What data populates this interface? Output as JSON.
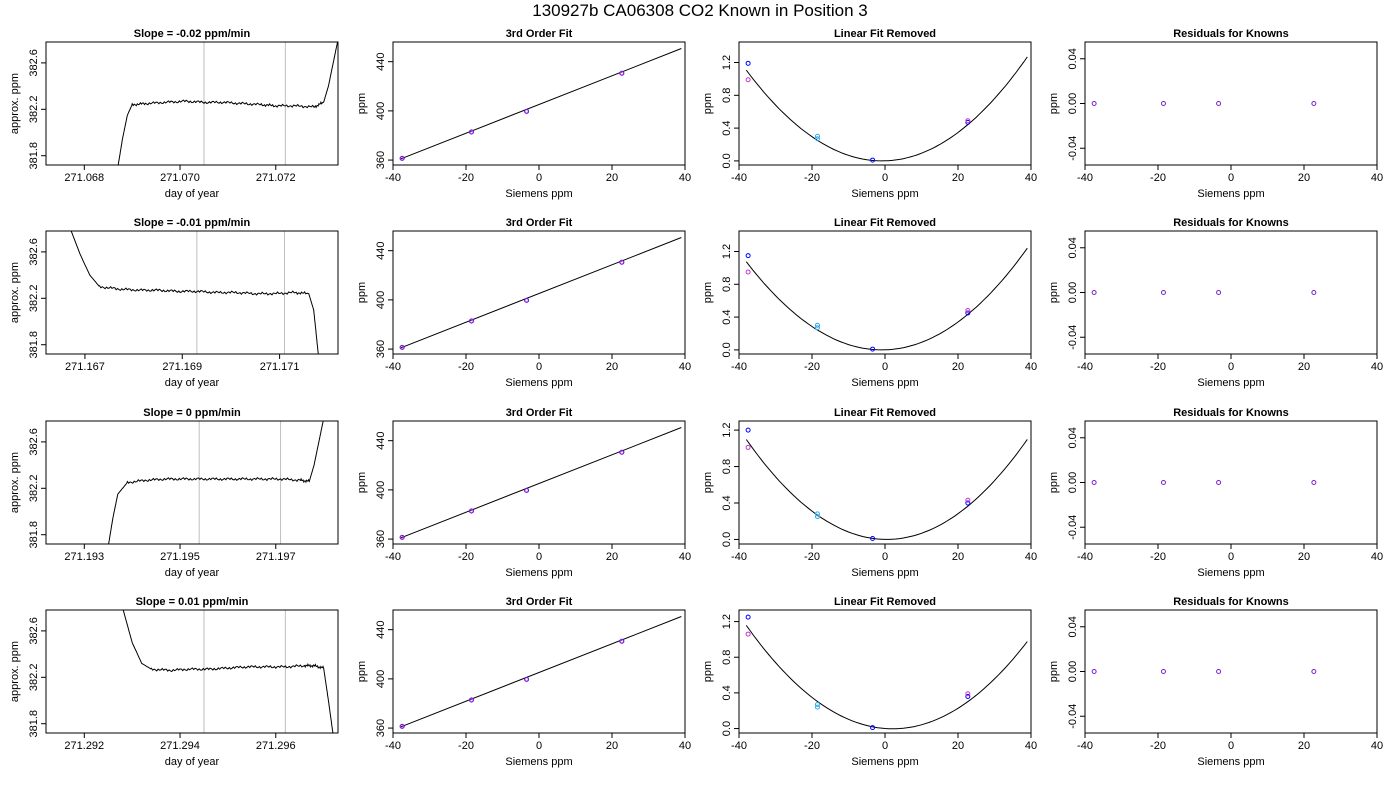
{
  "figure_title": "130927b     CA06308   CO2 Known in Position  3",
  "chart_data": [
    {
      "row": 0,
      "col": 0,
      "type": "line",
      "title": "Slope =  -0.02  ppm/min",
      "xlabel": "day of year",
      "ylabel": "approx. ppm",
      "xlim": [
        271.0672,
        271.0733
      ],
      "ylim": [
        381.72,
        382.78
      ],
      "xticks": [
        271.068,
        271.07,
        271.072
      ],
      "xtick_labels": [
        "271.068",
        "271.070",
        "271.072"
      ],
      "yticks": [
        381.8,
        382.2,
        382.6
      ],
      "ytick_labels": [
        "381.8",
        "382.2",
        "382.6"
      ],
      "vlines": [
        271.0705,
        271.0722
      ],
      "plateau": 382.26,
      "trace_x": [
        271.0687,
        271.0688,
        271.0689,
        271.069,
        271.0693,
        271.0697,
        271.0701,
        271.0705,
        271.0709,
        271.0713,
        271.0717,
        271.072,
        271.0724,
        271.0728,
        271.073,
        271.0731,
        271.0732,
        271.0733
      ],
      "trace_y": [
        381.7,
        381.95,
        382.15,
        382.24,
        382.25,
        382.26,
        382.27,
        382.26,
        382.26,
        382.25,
        382.24,
        382.23,
        382.23,
        382.22,
        382.26,
        382.4,
        382.6,
        382.8
      ]
    },
    {
      "row": 0,
      "col": 1,
      "type": "scatter",
      "title": "3rd Order Fit",
      "xlabel": "Siemens ppm",
      "ylabel": "ppm",
      "xlim": [
        -40,
        40
      ],
      "ylim": [
        356,
        456
      ],
      "xticks": [
        -40,
        -20,
        0,
        20,
        40
      ],
      "xtick_labels": [
        "-40",
        "-20",
        "0",
        "20",
        "40"
      ],
      "yticks": [
        360,
        400,
        440
      ],
      "ytick_labels": [
        "360",
        "400",
        "440"
      ],
      "points_x": [
        -37.5,
        -18.5,
        -3.4,
        22.7
      ],
      "points_y": [
        361.4,
        382.8,
        399.6,
        430.6
      ],
      "line_x": [
        -38,
        39
      ],
      "line_y": [
        360.8,
        450.7
      ]
    },
    {
      "row": 0,
      "col": 2,
      "type": "scatter",
      "title": "Linear Fit Removed",
      "xlabel": "Siemens ppm",
      "ylabel": "ppm",
      "xlim": [
        -40,
        40
      ],
      "ylim": [
        -0.05,
        1.45
      ],
      "xticks": [
        -40,
        -20,
        0,
        20,
        40
      ],
      "xtick_labels": [
        "-40",
        "-20",
        "0",
        "20",
        "40"
      ],
      "yticks": [
        0.0,
        0.4,
        0.8,
        1.2
      ],
      "ytick_labels": [
        "0.0",
        "0.4",
        "0.8",
        "1.2"
      ],
      "points_x": [
        -37.5,
        -37.5,
        -18.5,
        -18.5,
        -3.4,
        22.7,
        22.7
      ],
      "points_y": [
        1.19,
        0.99,
        0.3,
        0.27,
        0.01,
        0.47,
        0.49
      ],
      "curve_a": 0.0008,
      "curve_b": -0.0003,
      "curve_c": 0.0
    },
    {
      "row": 0,
      "col": 3,
      "type": "scatter",
      "title": "Residuals for Knowns",
      "xlabel": "Siemens ppm",
      "ylabel": "ppm",
      "xlim": [
        -40,
        40
      ],
      "ylim": [
        -0.055,
        0.055
      ],
      "xticks": [
        -40,
        -20,
        0,
        20,
        40
      ],
      "xtick_labels": [
        "-40",
        "-20",
        "0",
        "20",
        "40"
      ],
      "yticks": [
        -0.04,
        0.0,
        0.04
      ],
      "ytick_labels": [
        "-0.04",
        "0.00",
        "0.04"
      ],
      "points_x": [
        -37.5,
        -18.5,
        -3.4,
        22.7
      ],
      "points_y": [
        0,
        0,
        0,
        0
      ]
    },
    {
      "row": 1,
      "col": 0,
      "type": "line",
      "title": "Slope =  -0.01  ppm/min",
      "xlabel": "day of year",
      "ylabel": "approx. ppm",
      "xlim": [
        271.1662,
        271.1722
      ],
      "ylim": [
        381.72,
        382.78
      ],
      "xticks": [
        271.167,
        271.169,
        271.171
      ],
      "xtick_labels": [
        "271.167",
        "271.169",
        "271.171"
      ],
      "yticks": [
        381.8,
        382.2,
        382.6
      ],
      "ytick_labels": [
        "381.8",
        "382.2",
        "382.6"
      ],
      "vlines": [
        271.1693,
        271.1711
      ],
      "plateau": 382.26,
      "trace_x": [
        271.1667,
        271.1669,
        271.1671,
        271.1673,
        271.1677,
        271.1681,
        271.1685,
        271.1689,
        271.1693,
        271.1697,
        271.1701,
        271.1705,
        271.1709,
        271.1713,
        271.1716,
        271.1717,
        271.1718
      ],
      "trace_y": [
        382.8,
        382.58,
        382.4,
        382.3,
        382.28,
        382.27,
        382.27,
        382.26,
        382.26,
        382.25,
        382.25,
        382.24,
        382.24,
        382.25,
        382.24,
        382.1,
        381.7
      ]
    },
    {
      "row": 1,
      "col": 1,
      "type": "scatter",
      "title": "3rd Order Fit",
      "xlabel": "Siemens ppm",
      "ylabel": "ppm",
      "xlim": [
        -40,
        40
      ],
      "ylim": [
        356,
        456
      ],
      "xticks": [
        -40,
        -20,
        0,
        20,
        40
      ],
      "xtick_labels": [
        "-40",
        "-20",
        "0",
        "20",
        "40"
      ],
      "yticks": [
        360,
        400,
        440
      ],
      "ytick_labels": [
        "360",
        "400",
        "440"
      ],
      "points_x": [
        -37.5,
        -18.5,
        -3.4,
        22.7
      ],
      "points_y": [
        361.4,
        382.8,
        399.6,
        430.6
      ],
      "line_x": [
        -38,
        39
      ],
      "line_y": [
        360.8,
        450.7
      ]
    },
    {
      "row": 1,
      "col": 2,
      "type": "scatter",
      "title": "Linear Fit Removed",
      "xlabel": "Siemens ppm",
      "ylabel": "ppm",
      "xlim": [
        -40,
        40
      ],
      "ylim": [
        -0.05,
        1.45
      ],
      "xticks": [
        -40,
        -20,
        0,
        20,
        40
      ],
      "xtick_labels": [
        "-40",
        "-20",
        "0",
        "20",
        "40"
      ],
      "yticks": [
        0.0,
        0.4,
        0.8,
        1.2
      ],
      "ytick_labels": [
        "0.0",
        "0.4",
        "0.8",
        "1.2"
      ],
      "points_x": [
        -37.5,
        -37.5,
        -18.5,
        -18.5,
        -3.4,
        22.7,
        22.7
      ],
      "points_y": [
        1.15,
        0.95,
        0.3,
        0.27,
        0.01,
        0.45,
        0.48
      ],
      "curve_a": 0.00078,
      "curve_b": -0.0002,
      "curve_c": 0.0
    },
    {
      "row": 1,
      "col": 3,
      "type": "scatter",
      "title": "Residuals for Knowns",
      "xlabel": "Siemens ppm",
      "ylabel": "ppm",
      "xlim": [
        -40,
        40
      ],
      "ylim": [
        -0.055,
        0.055
      ],
      "xticks": [
        -40,
        -20,
        0,
        20,
        40
      ],
      "xtick_labels": [
        "-40",
        "-20",
        "0",
        "20",
        "40"
      ],
      "yticks": [
        -0.04,
        0.0,
        0.04
      ],
      "ytick_labels": [
        "-0.04",
        "0.00",
        "0.04"
      ],
      "points_x": [
        -37.5,
        -18.5,
        -3.4,
        22.7
      ],
      "points_y": [
        0,
        0,
        0,
        0
      ]
    },
    {
      "row": 2,
      "col": 0,
      "type": "line",
      "title": "Slope =  0  ppm/min",
      "xlabel": "day of year",
      "ylabel": "approx. ppm",
      "xlim": [
        271.1922,
        271.1983
      ],
      "ylim": [
        381.72,
        382.78
      ],
      "xticks": [
        271.193,
        271.195,
        271.197
      ],
      "xtick_labels": [
        "271.193",
        "271.195",
        "271.197"
      ],
      "yticks": [
        381.8,
        382.2,
        382.6
      ],
      "ytick_labels": [
        "381.8",
        "382.2",
        "382.6"
      ],
      "vlines": [
        271.1954,
        271.1971
      ],
      "plateau": 382.28,
      "trace_x": [
        271.1935,
        271.1936,
        271.1937,
        271.1939,
        271.1943,
        271.1947,
        271.1951,
        271.1955,
        271.1959,
        271.1963,
        271.1967,
        271.1971,
        271.1975,
        271.1977,
        271.1978,
        271.1979,
        271.198
      ],
      "trace_y": [
        381.7,
        381.95,
        382.15,
        382.25,
        382.27,
        382.28,
        382.28,
        382.28,
        382.28,
        382.28,
        382.28,
        382.28,
        382.27,
        382.26,
        382.4,
        382.6,
        382.8
      ]
    },
    {
      "row": 2,
      "col": 1,
      "type": "scatter",
      "title": "3rd Order Fit",
      "xlabel": "Siemens ppm",
      "ylabel": "ppm",
      "xlim": [
        -40,
        40
      ],
      "ylim": [
        356,
        456
      ],
      "xticks": [
        -40,
        -20,
        0,
        20,
        40
      ],
      "xtick_labels": [
        "-40",
        "-20",
        "0",
        "20",
        "40"
      ],
      "yticks": [
        360,
        400,
        440
      ],
      "ytick_labels": [
        "360",
        "400",
        "440"
      ],
      "points_x": [
        -37.5,
        -18.5,
        -3.4,
        22.7
      ],
      "points_y": [
        361.4,
        382.8,
        399.6,
        430.6
      ],
      "line_x": [
        -38,
        39
      ],
      "line_y": [
        360.8,
        450.7
      ]
    },
    {
      "row": 2,
      "col": 2,
      "type": "scatter",
      "title": "Linear Fit Removed",
      "xlabel": "Siemens ppm",
      "ylabel": "ppm",
      "xlim": [
        -40,
        40
      ],
      "ylim": [
        -0.05,
        1.3
      ],
      "xticks": [
        -40,
        -20,
        0,
        20,
        40
      ],
      "xtick_labels": [
        "-40",
        "-20",
        "0",
        "20",
        "40"
      ],
      "yticks": [
        0.0,
        0.4,
        0.8,
        1.2
      ],
      "ytick_labels": [
        "0.0",
        "0.4",
        "0.8",
        "1.2"
      ],
      "points_x": [
        -37.5,
        -37.5,
        -18.5,
        -18.5,
        -3.4,
        22.7,
        22.7
      ],
      "points_y": [
        1.2,
        1.01,
        0.28,
        0.25,
        0.01,
        0.4,
        0.43
      ],
      "curve_a": 0.00074,
      "curve_b": -0.0022,
      "curve_c": 0.0
    },
    {
      "row": 2,
      "col": 3,
      "type": "scatter",
      "title": "Residuals for Knowns",
      "xlabel": "Siemens ppm",
      "ylabel": "ppm",
      "xlim": [
        -40,
        40
      ],
      "ylim": [
        -0.055,
        0.055
      ],
      "xticks": [
        -40,
        -20,
        0,
        20,
        40
      ],
      "xtick_labels": [
        "-40",
        "-20",
        "0",
        "20",
        "40"
      ],
      "yticks": [
        -0.04,
        0.0,
        0.04
      ],
      "ytick_labels": [
        "-0.04",
        "0.00",
        "0.04"
      ],
      "points_x": [
        -37.5,
        -18.5,
        -3.4,
        22.7
      ],
      "points_y": [
        0,
        0,
        0,
        0
      ]
    },
    {
      "row": 3,
      "col": 0,
      "type": "line",
      "title": "Slope =  0.01  ppm/min",
      "xlabel": "day of year",
      "ylabel": "approx. ppm",
      "xlim": [
        271.2912,
        271.2973
      ],
      "ylim": [
        381.72,
        382.78
      ],
      "xticks": [
        271.292,
        271.294,
        271.296
      ],
      "xtick_labels": [
        "271.292",
        "271.294",
        "271.296"
      ],
      "yticks": [
        381.8,
        382.2,
        382.6
      ],
      "ytick_labels": [
        "381.8",
        "382.2",
        "382.6"
      ],
      "vlines": [
        271.2945,
        271.2962
      ],
      "plateau": 382.28,
      "trace_x": [
        271.2928,
        271.293,
        271.2932,
        271.2934,
        271.2938,
        271.2942,
        271.2946,
        271.295,
        271.2954,
        271.2958,
        271.2962,
        271.2966,
        271.2968,
        271.297,
        271.2971,
        271.2972
      ],
      "trace_y": [
        382.8,
        382.5,
        382.32,
        382.27,
        382.26,
        382.27,
        382.27,
        382.28,
        382.29,
        382.29,
        382.29,
        382.3,
        382.3,
        382.28,
        382.0,
        381.7
      ]
    },
    {
      "row": 3,
      "col": 1,
      "type": "scatter",
      "title": "3rd Order Fit",
      "xlabel": "Siemens ppm",
      "ylabel": "ppm",
      "xlim": [
        -40,
        40
      ],
      "ylim": [
        356,
        456
      ],
      "xticks": [
        -40,
        -20,
        0,
        20,
        40
      ],
      "xtick_labels": [
        "-40",
        "-20",
        "0",
        "20",
        "40"
      ],
      "yticks": [
        360,
        400,
        440
      ],
      "ytick_labels": [
        "360",
        "400",
        "440"
      ],
      "points_x": [
        -37.5,
        -18.5,
        -3.4,
        22.7
      ],
      "points_y": [
        361.4,
        382.8,
        399.6,
        430.6
      ],
      "line_x": [
        -38,
        39
      ],
      "line_y": [
        360.8,
        450.7
      ]
    },
    {
      "row": 3,
      "col": 2,
      "type": "scatter",
      "title": "Linear Fit Removed",
      "xlabel": "Siemens ppm",
      "ylabel": "ppm",
      "xlim": [
        -40,
        40
      ],
      "ylim": [
        -0.05,
        1.33
      ],
      "xticks": [
        -40,
        -20,
        0,
        20,
        40
      ],
      "xtick_labels": [
        "-40",
        "-20",
        "0",
        "20",
        "40"
      ],
      "yticks": [
        0.0,
        0.4,
        0.8,
        1.2
      ],
      "ytick_labels": [
        "0.0",
        "0.4",
        "0.8",
        "1.2"
      ],
      "points_x": [
        -37.5,
        -37.5,
        -18.5,
        -18.5,
        -3.4,
        22.7,
        22.7
      ],
      "points_y": [
        1.25,
        1.06,
        0.27,
        0.24,
        0.01,
        0.36,
        0.39
      ],
      "curve_a": 0.00072,
      "curve_b": -0.0045,
      "curve_c": 0.0
    },
    {
      "row": 3,
      "col": 3,
      "type": "scatter",
      "title": "Residuals for Knowns",
      "xlabel": "Siemens ppm",
      "ylabel": "ppm",
      "xlim": [
        -40,
        40
      ],
      "ylim": [
        -0.055,
        0.055
      ],
      "xticks": [
        -40,
        -20,
        0,
        20,
        40
      ],
      "xtick_labels": [
        "-40",
        "-20",
        "0",
        "20",
        "40"
      ],
      "yticks": [
        -0.04,
        0.0,
        0.04
      ],
      "ytick_labels": [
        "-0.04",
        "0.00",
        "0.04"
      ],
      "points_x": [
        -37.5,
        -18.5,
        -3.4,
        22.7
      ],
      "points_y": [
        0,
        0,
        0,
        0
      ]
    }
  ],
  "colors": {
    "axis": "#000000",
    "trace": "#000000",
    "vline": "#bebebe",
    "point_blue": "#0000ff",
    "point_magenta": "#cc33cc",
    "point_cyan": "#33aaee",
    "point_purple": "#7722cc"
  }
}
